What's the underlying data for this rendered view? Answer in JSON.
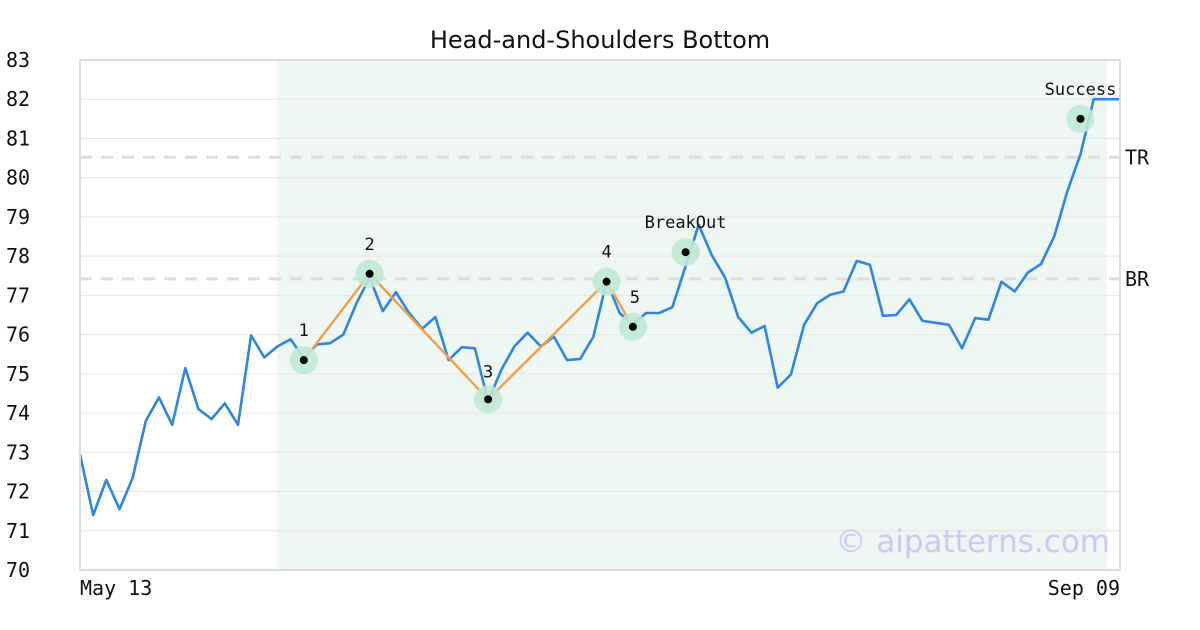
{
  "chart_data": {
    "type": "line",
    "title": "Head-and-Shoulders Bottom",
    "xlabel": "",
    "ylabel": "",
    "ylim": [
      70,
      83
    ],
    "yticks": [
      70,
      71,
      72,
      73,
      74,
      75,
      76,
      77,
      78,
      79,
      80,
      81,
      82,
      83
    ],
    "x_start_label": "May 13",
    "x_end_label": "Sep 09",
    "grid": "horizontal",
    "pattern_region_index": [
      15,
      78
    ],
    "series": [
      {
        "color": "#2e86de",
        "values": [
          72.95,
          71.4,
          72.3,
          71.55,
          72.35,
          73.8,
          74.4,
          73.7,
          75.15,
          74.1,
          73.85,
          74.25,
          73.7,
          75.98,
          75.42,
          75.7,
          75.88,
          75.4,
          75.75,
          75.78,
          76.0,
          76.8,
          77.45,
          76.6,
          77.08,
          76.55,
          76.15,
          76.45,
          75.35,
          75.68,
          75.65,
          74.3,
          75.1,
          75.7,
          76.05,
          75.7,
          75.95,
          75.35,
          75.38,
          75.95,
          77.35,
          76.55,
          76.25,
          76.55,
          76.55,
          76.7,
          77.75,
          78.8,
          78.02,
          77.45,
          76.45,
          76.05,
          76.22,
          74.65,
          74.98,
          76.25,
          76.8,
          77.02,
          77.1,
          77.88,
          77.78,
          76.48,
          76.5,
          76.9,
          76.35,
          76.3,
          76.25,
          75.65,
          76.42,
          76.38,
          77.35,
          77.1,
          77.58,
          77.8,
          78.5,
          79.65,
          80.6,
          82.0,
          82.0,
          82.0
        ]
      }
    ],
    "pattern": {
      "color": "#f39c45",
      "points": [
        {
          "label": "1",
          "index": 17,
          "value": 75.35
        },
        {
          "label": "2",
          "index": 22,
          "value": 77.55
        },
        {
          "label": "3",
          "index": 31,
          "value": 74.35
        },
        {
          "label": "4",
          "index": 40,
          "value": 77.35
        },
        {
          "label": "5",
          "index": 42,
          "value": 76.2
        }
      ]
    },
    "markers": [
      {
        "label": "BreakOut",
        "index": 46,
        "value": 78.1
      },
      {
        "label": "Success",
        "index": 76,
        "value": 81.5
      }
    ],
    "levels": [
      {
        "label": "TR",
        "value": 80.52
      },
      {
        "label": "BR",
        "value": 77.42
      }
    ],
    "colors": {
      "line": "#2e86de",
      "pattern": "#f39c45",
      "highlight_region": "#eef7f3",
      "marker_halo": "#bfe8d5",
      "level_line": "#dddddd"
    }
  },
  "watermark": "© aipatterns.com"
}
